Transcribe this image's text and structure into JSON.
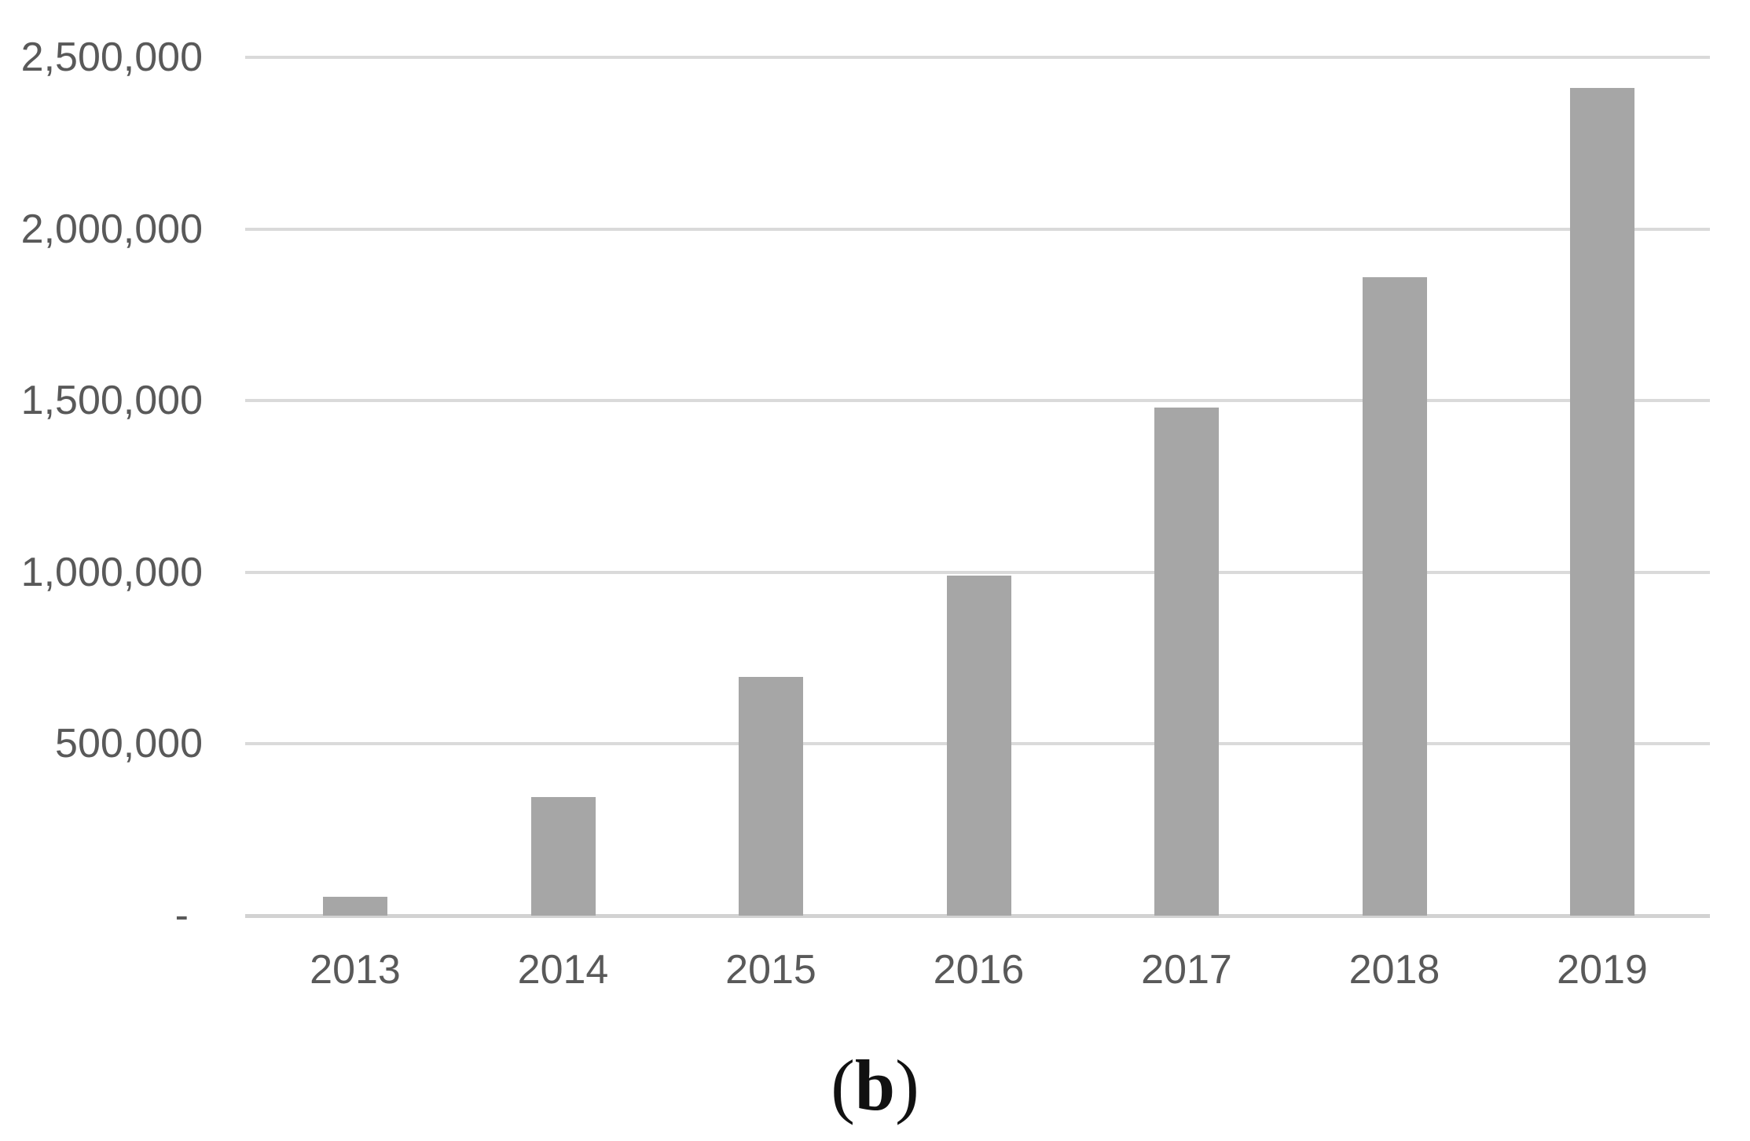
{
  "chart_data": {
    "type": "bar",
    "categories": [
      "2013",
      "2014",
      "2015",
      "2016",
      "2017",
      "2018",
      "2019"
    ],
    "values": [
      55000,
      345000,
      695000,
      990000,
      1480000,
      1860000,
      2410000
    ],
    "title": "",
    "xlabel": "",
    "ylabel": "",
    "ylim": [
      0,
      2500000
    ],
    "ytick_step": 500000,
    "ytick_labels": [
      "-",
      "500,000",
      "1,000,000",
      "1,500,000",
      "2,000,000",
      "2,500,000"
    ],
    "legend": null,
    "grid": true,
    "bar_color": "#a6a6a6",
    "gridline_color": "#dadada",
    "tick_text_color": "#595959"
  },
  "caption": {
    "open": "(",
    "letter": "b",
    "close": ")"
  }
}
